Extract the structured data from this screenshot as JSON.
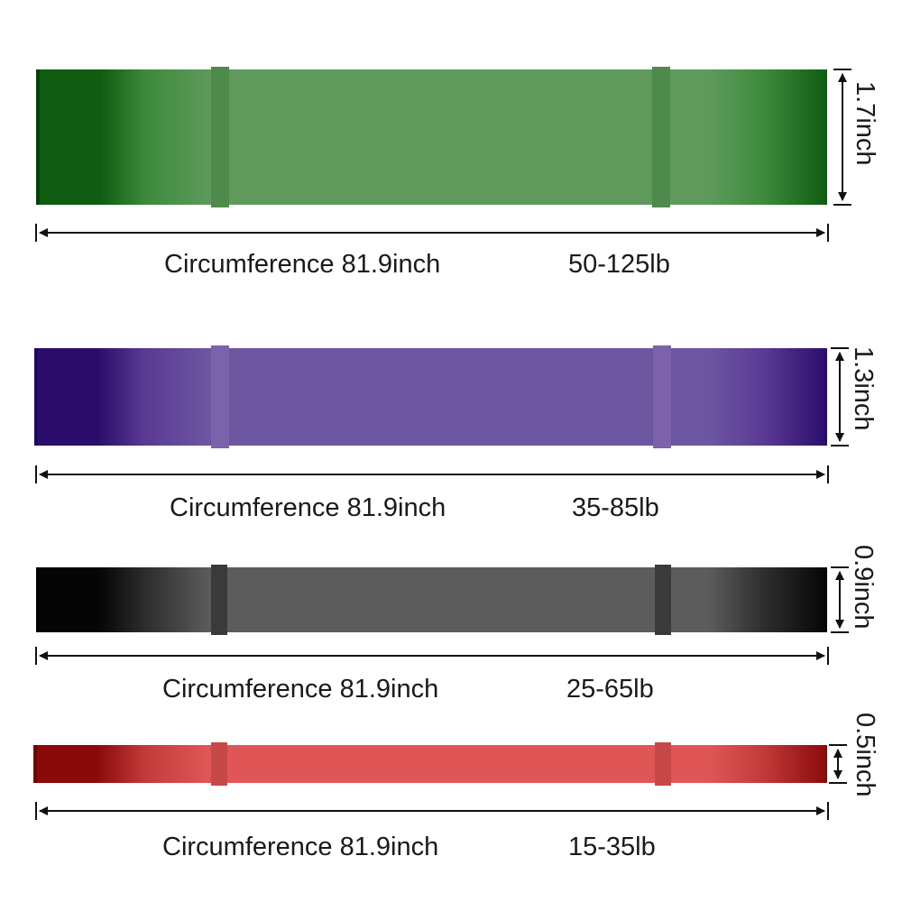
{
  "bands": [
    {
      "circumference_label": "Circumference 81.9inch",
      "resistance": "50-125lb",
      "height_label": "1.7inch",
      "colors": {
        "dark": "#0f5c12",
        "mid": "#3d8a3d",
        "main": "#5f9a5c",
        "strap": "#4e8a4b"
      }
    },
    {
      "circumference_label": "Circumference 81.9inch",
      "resistance": "35-85lb",
      "height_label": "1.3inch",
      "colors": {
        "dark": "#2a0d6b",
        "mid": "#5a3a94",
        "main": "#6d56a0",
        "strap": "#7c62ab"
      }
    },
    {
      "circumference_label": "Circumference 81.9inch",
      "resistance": "25-65lb",
      "height_label": "0.9inch",
      "colors": {
        "dark": "#050505",
        "mid": "#2e2e2e",
        "main": "#5c5c5c",
        "strap": "#3a3a3a"
      }
    },
    {
      "circumference_label": "Circumference 81.9inch",
      "resistance": "15-35lb",
      "height_label": "0.5inch",
      "colors": {
        "dark": "#8a0a0a",
        "mid": "#c33a3a",
        "main": "#e05656",
        "strap": "#c64848"
      }
    }
  ]
}
